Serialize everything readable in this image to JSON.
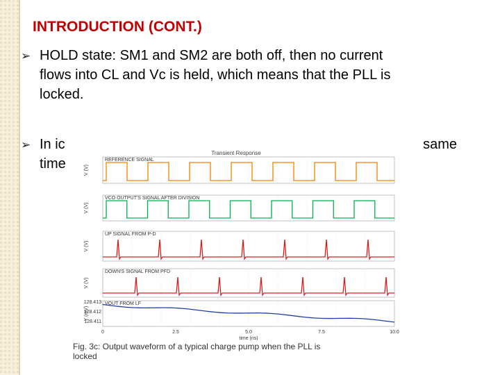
{
  "slide": {
    "title": "INTRODUCTION (CONT.)",
    "bullets": [
      {
        "lines": [
          "HOLD state: SM1 and SM2 are both off, then no current",
          "flows into CL and Vc is held, which means that the PLL is",
          "locked."
        ]
      },
      {
        "fragments": [
          "In ic",
          "same",
          "time"
        ]
      }
    ],
    "figure": {
      "title": "Transient Response",
      "panels": [
        "REFERENCE SIGNAL",
        "VCO OUTPUT'S SIGNAL AFTER DIVISION",
        "UP SIGNAL FROM P-D",
        "DOWN'S SIGNAL FROM PFD",
        "VOUT FROM LF"
      ],
      "y_labels": [
        "V (V)",
        "V (V)",
        "V (V)",
        "V (V)",
        "Y (mV)"
      ],
      "x_ticks": [
        "0",
        "2.5",
        "5.0",
        "7.5",
        "10.0"
      ],
      "x_label": "time (ns)",
      "y_ticks_last": [
        "128.413",
        "128.412",
        "128.411"
      ],
      "caption": [
        "Fig. 3c: Output waveform of a typical charge pump when the PLL is",
        "locked"
      ]
    }
  }
}
